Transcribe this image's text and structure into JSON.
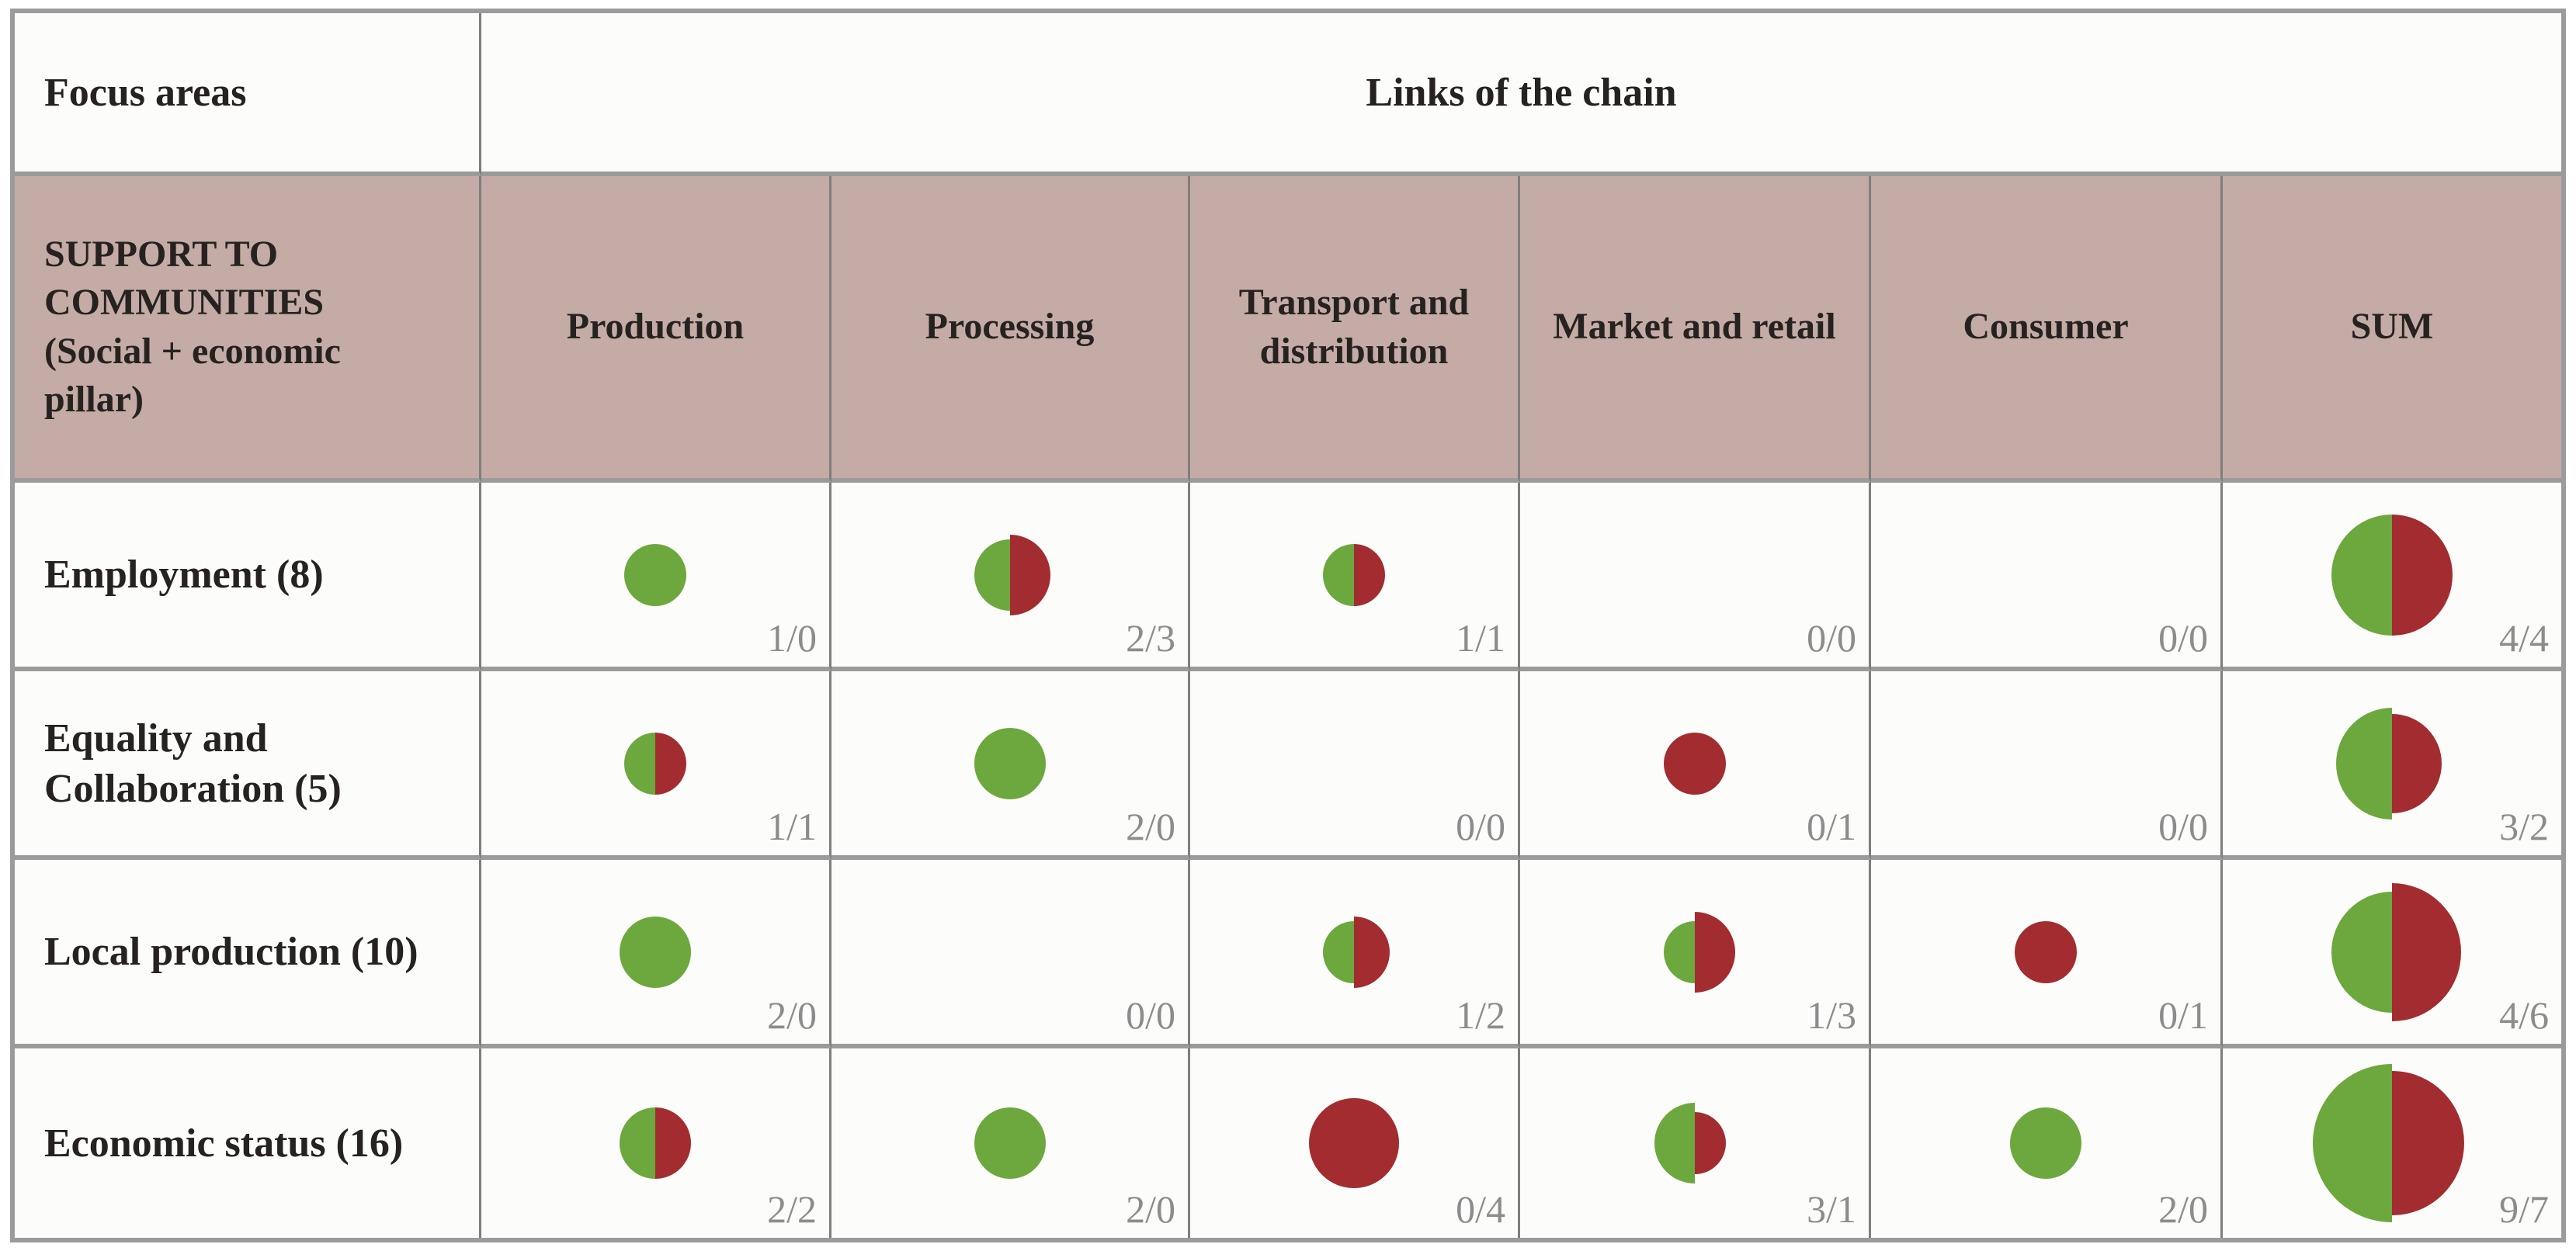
{
  "figure": {
    "corner_header": "Focus areas",
    "span_header": "Links of the chain",
    "group_header": "SUPPORT TO\nCOMMUNITIES\n(Social + economic\npillar)",
    "columns": [
      "Production",
      "Processing",
      "Transport and distribution",
      "Market and retail",
      "Consumer",
      "SUM"
    ],
    "rows": [
      {
        "label": "Employment (8)",
        "cells": [
          {
            "green": 1,
            "red": 0,
            "ratio": "1/0"
          },
          {
            "green": 2,
            "red": 3,
            "ratio": "2/3"
          },
          {
            "green": 1,
            "red": 1,
            "ratio": "1/1"
          },
          {
            "green": 0,
            "red": 0,
            "ratio": "0/0"
          },
          {
            "green": 0,
            "red": 0,
            "ratio": "0/0"
          },
          {
            "green": 4,
            "red": 4,
            "ratio": "4/4"
          }
        ]
      },
      {
        "label": "Equality and Collaboration (5)",
        "cells": [
          {
            "green": 1,
            "red": 1,
            "ratio": "1/1"
          },
          {
            "green": 2,
            "red": 0,
            "ratio": "2/0"
          },
          {
            "green": 0,
            "red": 0,
            "ratio": "0/0"
          },
          {
            "green": 0,
            "red": 1,
            "ratio": "0/1"
          },
          {
            "green": 0,
            "red": 0,
            "ratio": "0/0"
          },
          {
            "green": 3,
            "red": 2,
            "ratio": "3/2"
          }
        ]
      },
      {
        "label": "Local production (10)",
        "cells": [
          {
            "green": 2,
            "red": 0,
            "ratio": "2/0"
          },
          {
            "green": 0,
            "red": 0,
            "ratio": "0/0"
          },
          {
            "green": 1,
            "red": 2,
            "ratio": "1/2"
          },
          {
            "green": 1,
            "red": 3,
            "ratio": "1/3"
          },
          {
            "green": 0,
            "red": 1,
            "ratio": "0/1"
          },
          {
            "green": 4,
            "red": 6,
            "ratio": "4/6"
          }
        ]
      },
      {
        "label": "Economic status (16)",
        "cells": [
          {
            "green": 2,
            "red": 2,
            "ratio": "2/2"
          },
          {
            "green": 2,
            "red": 0,
            "ratio": "2/0"
          },
          {
            "green": 0,
            "red": 4,
            "ratio": "0/4"
          },
          {
            "green": 3,
            "red": 1,
            "ratio": "3/1"
          },
          {
            "green": 2,
            "red": 0,
            "ratio": "2/0"
          },
          {
            "green": 9,
            "red": 7,
            "ratio": "9/7"
          }
        ]
      }
    ]
  },
  "colors": {
    "green": "#6CA83D",
    "red": "#A22C30",
    "header_bg": "#C4ABA6",
    "grid_vertical": "#7E7E7E",
    "grid_horizontal": "#9B9B9B",
    "text": "#262220",
    "ratio_text": "#8C8C8C"
  },
  "chart_data": {
    "type": "table",
    "title": "Links of the chain",
    "row_group": "SUPPORT TO COMMUNITIES (Social + economic pillar)",
    "columns": [
      "Production",
      "Processing",
      "Transport and distribution",
      "Market and retail",
      "Consumer",
      "SUM"
    ],
    "rows": [
      "Employment (8)",
      "Equality and Collaboration (5)",
      "Local production (10)",
      "Economic status (16)"
    ],
    "cell_value_format": "green/red half-circle bubbles sized by count, label 'green/red'",
    "series": [
      {
        "name": "Employment (8)",
        "green": [
          1,
          2,
          1,
          0,
          0,
          4
        ],
        "red": [
          0,
          3,
          1,
          0,
          0,
          4
        ]
      },
      {
        "name": "Equality and Collaboration (5)",
        "green": [
          1,
          2,
          0,
          0,
          0,
          3
        ],
        "red": [
          1,
          0,
          0,
          1,
          0,
          2
        ]
      },
      {
        "name": "Local production (10)",
        "green": [
          2,
          0,
          1,
          1,
          0,
          4
        ],
        "red": [
          0,
          0,
          2,
          3,
          1,
          6
        ]
      },
      {
        "name": "Economic status (16)",
        "green": [
          2,
          2,
          0,
          3,
          2,
          9
        ],
        "red": [
          2,
          0,
          4,
          1,
          0,
          7
        ]
      }
    ]
  }
}
